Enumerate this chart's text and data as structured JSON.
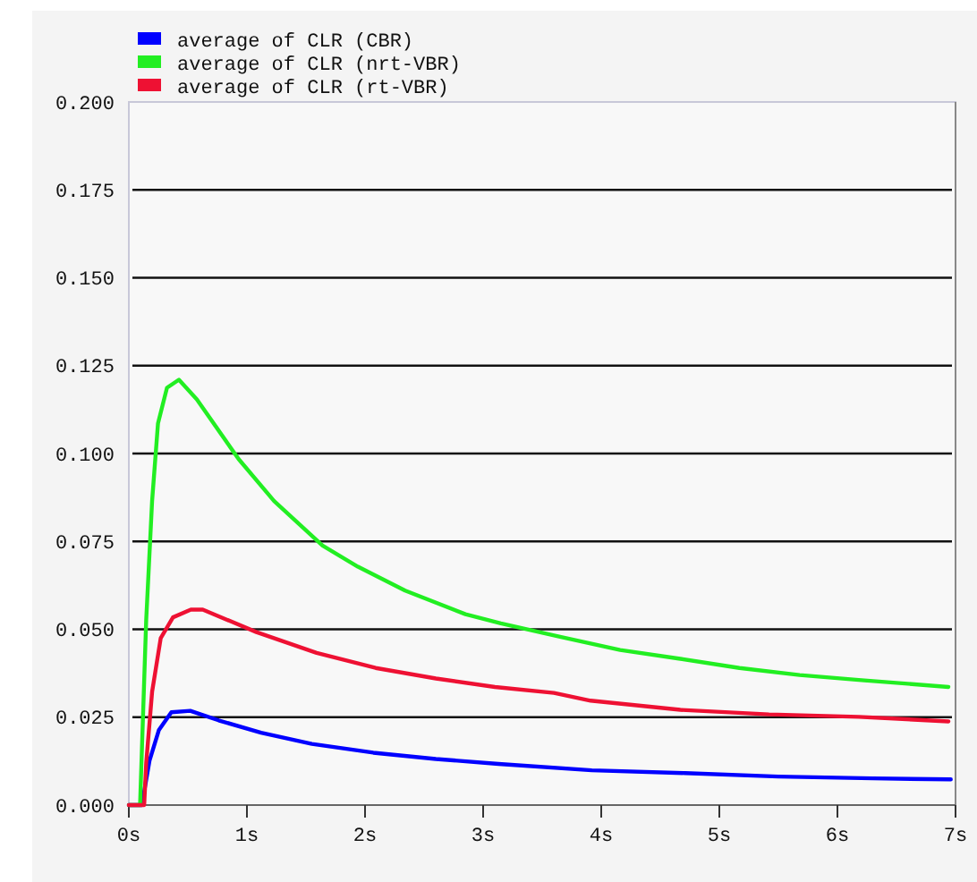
{
  "chart_data": {
    "type": "line",
    "xlim": [
      0,
      7
    ],
    "xticks": [
      {
        "value": 0,
        "label": "0s"
      },
      {
        "value": 1,
        "label": "1s"
      },
      {
        "value": 2,
        "label": "2s"
      },
      {
        "value": 3,
        "label": "3s"
      },
      {
        "value": 4,
        "label": "4s"
      },
      {
        "value": 5,
        "label": "5s"
      },
      {
        "value": 6,
        "label": "6s"
      },
      {
        "value": 7,
        "label": "7s"
      }
    ],
    "ylim": [
      0,
      0.2
    ],
    "yticks": [
      {
        "value": 0,
        "label": "0.000"
      },
      {
        "value": 0.025,
        "label": "0.025"
      },
      {
        "value": 0.05,
        "label": "0.050"
      },
      {
        "value": 0.075,
        "label": "0.075"
      },
      {
        "value": 0.1,
        "label": "0.100"
      },
      {
        "value": 0.125,
        "label": "0.125"
      },
      {
        "value": 0.15,
        "label": "0.150"
      },
      {
        "value": 0.175,
        "label": "0.175"
      },
      {
        "value": 0.2,
        "label": "0.200"
      }
    ],
    "grid": "y",
    "legend": "top left",
    "series": [
      {
        "name": "average of CLR (CBR)",
        "color": "#0000ff",
        "x": [
          0,
          0.11,
          0.175,
          0.255,
          0.36,
          0.52,
          0.76,
          1.12,
          1.55,
          2.07,
          2.6,
          3.13,
          3.92,
          4.71,
          5.5,
          6.3,
          6.96
        ],
        "values": [
          0,
          0,
          0.0126,
          0.0214,
          0.0264,
          0.0268,
          0.0241,
          0.0206,
          0.0174,
          0.0149,
          0.0131,
          0.0117,
          0.0099,
          0.0091,
          0.0081,
          0.0076,
          0.0073
        ]
      },
      {
        "name": "average of CLR (nrt-VBR)",
        "color": "#22ee22",
        "x": [
          0,
          0.095,
          0.147,
          0.197,
          0.247,
          0.323,
          0.424,
          0.576,
          0.93,
          1.23,
          1.64,
          1.94,
          2.34,
          2.85,
          3.15,
          3.66,
          4.16,
          4.67,
          5.17,
          5.68,
          6.18,
          6.94
        ],
        "values": [
          0,
          0,
          0.0526,
          0.0865,
          0.1086,
          0.1187,
          0.121,
          0.1154,
          0.0984,
          0.0865,
          0.0738,
          0.0678,
          0.061,
          0.0543,
          0.0517,
          0.0478,
          0.0441,
          0.0416,
          0.039,
          0.037,
          0.0356,
          0.0336
        ]
      },
      {
        "name": "average of CLR (rt-VBR)",
        "color": "#ee1133",
        "x": [
          0,
          0.13,
          0.147,
          0.197,
          0.27,
          0.374,
          0.525,
          0.626,
          1.08,
          1.59,
          2.09,
          2.6,
          3.1,
          3.6,
          3.91,
          4.67,
          5.42,
          6.18,
          6.94
        ],
        "values": [
          0,
          0,
          0.0119,
          0.0322,
          0.0475,
          0.0534,
          0.0556,
          0.0556,
          0.0492,
          0.0433,
          0.039,
          0.036,
          0.0336,
          0.0319,
          0.0297,
          0.0271,
          0.0258,
          0.0251,
          0.0238
        ]
      }
    ]
  }
}
